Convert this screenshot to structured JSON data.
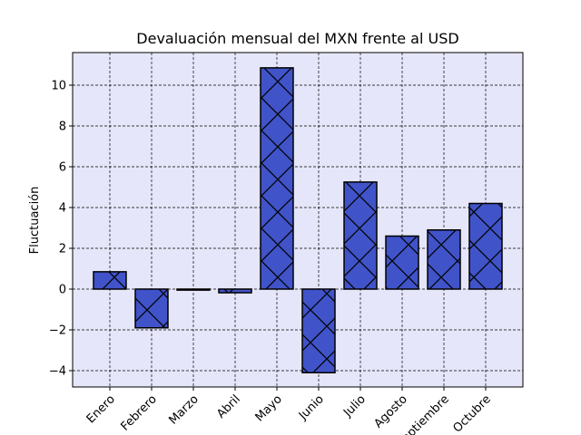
{
  "chart_data": {
    "type": "bar",
    "title": "Devaluación mensual del MXN frente al USD",
    "xlabel": "",
    "ylabel": "Fluctuación",
    "categories": [
      "Enero",
      "Febrero",
      "Marzo",
      "Abril",
      "Mayo",
      "Junio",
      "Julio",
      "Agosto",
      "Septiembre",
      "Octubre"
    ],
    "values": [
      0.85,
      -1.9,
      -0.05,
      -0.18,
      10.85,
      -4.1,
      5.25,
      2.6,
      2.9,
      4.2
    ],
    "ylim": [
      -4.8,
      11.6
    ],
    "yticks": [
      -4,
      -2,
      0,
      2,
      4,
      6,
      8,
      10
    ],
    "ytick_labels": [
      "−4",
      "−2",
      "0",
      "2",
      "4",
      "6",
      "8",
      "10"
    ],
    "grid": true,
    "colors": {
      "bar_fill": "#4053c8",
      "bar_edge": "#000000",
      "plot_background": "#e6e6fa"
    }
  }
}
